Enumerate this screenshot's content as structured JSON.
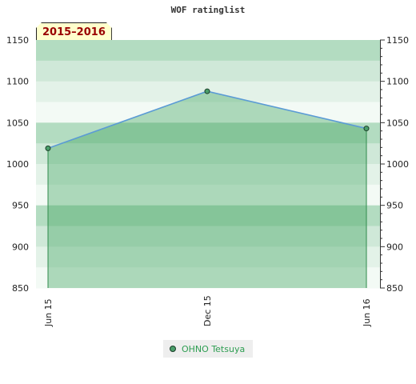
{
  "chart_data": {
    "type": "line",
    "title": "WOF ratinglist",
    "period_label": "2015–2016",
    "x_labels": [
      "Jun 15",
      "Dec 15",
      "Jun 16"
    ],
    "ylim": [
      850,
      1150
    ],
    "y_ticks": [
      850,
      900,
      950,
      1000,
      1050,
      1100,
      1150
    ],
    "grid": true,
    "legend_position": "bottom-center",
    "series": [
      {
        "name": "OHNO Tetsuya",
        "points": [
          {
            "x": "Jun 15",
            "y": 1019
          },
          {
            "x": "Dec 15",
            "y": 1088
          },
          {
            "x": "Jun 16",
            "y": 1043
          }
        ]
      }
    ]
  },
  "colors": {
    "line": "#5b9bd5",
    "marker_fill": "#4a9e6a",
    "area_fill": "#3aa05a",
    "bands": [
      "#b3dcc1",
      "#cfe8d8",
      "#e3f2e8",
      "#f3faf5"
    ]
  }
}
